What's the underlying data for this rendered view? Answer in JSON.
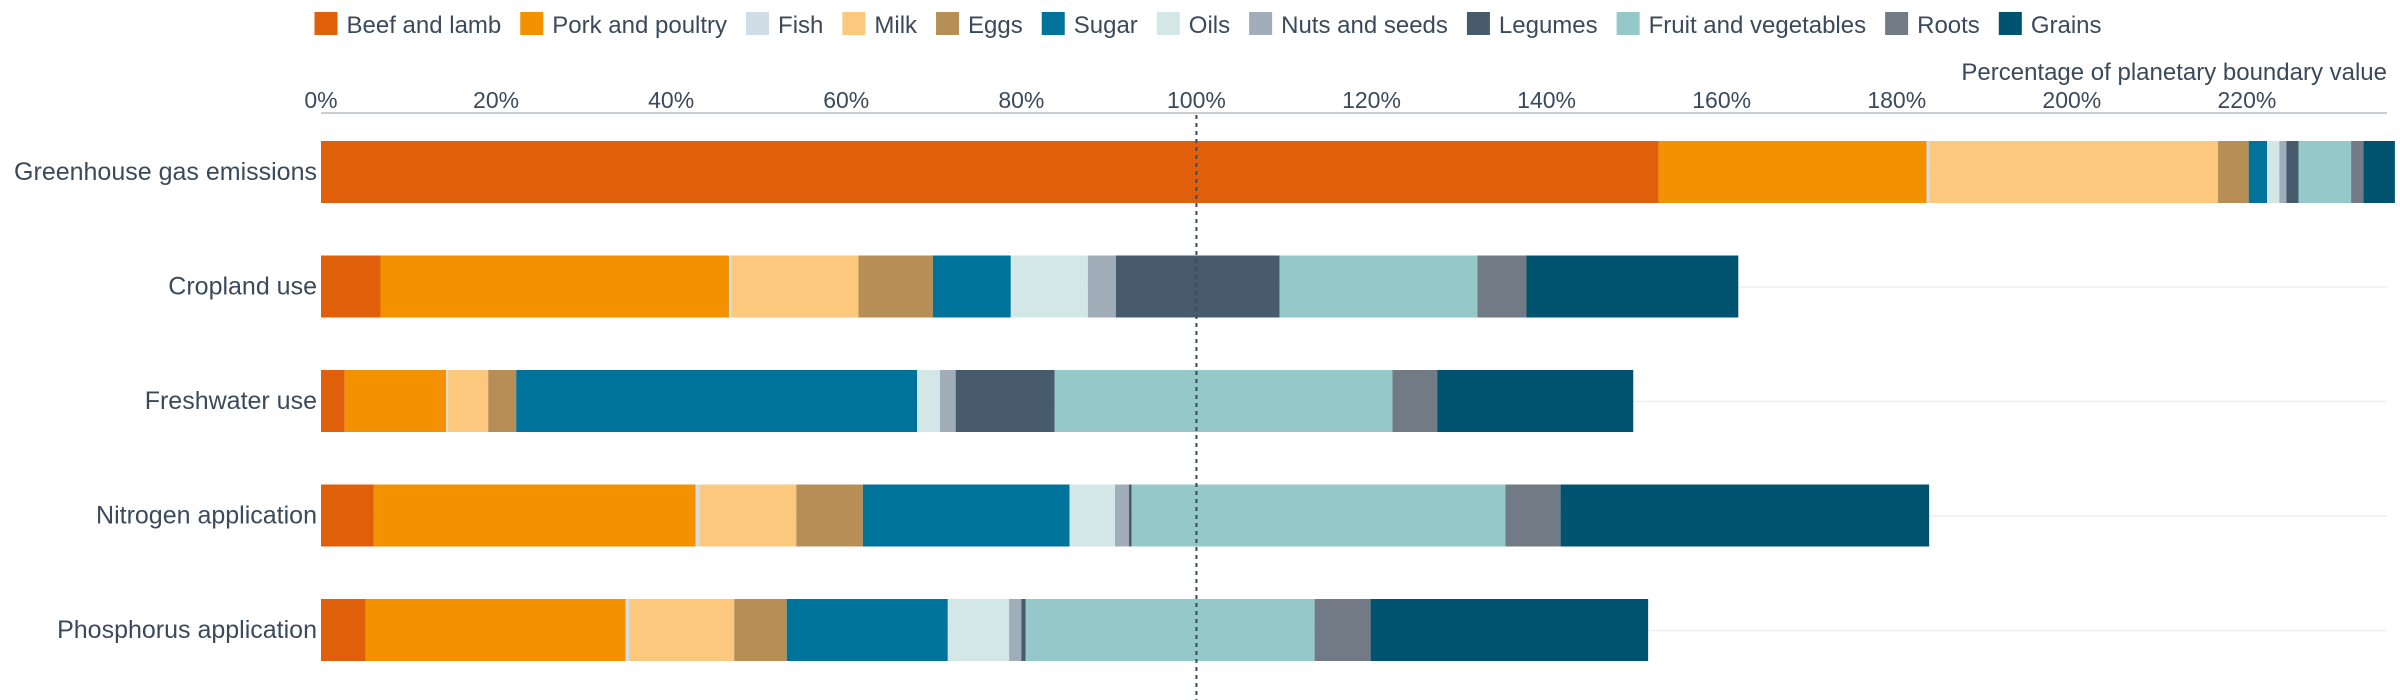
{
  "chart_data": {
    "type": "bar",
    "orientation": "horizontal",
    "stacked": true,
    "title": "",
    "xlabel": "Percentage of planetary boundary value",
    "ylabel": "",
    "xlim": [
      0,
      236
    ],
    "xticks": [
      0,
      20,
      40,
      60,
      80,
      100,
      120,
      140,
      160,
      180,
      200,
      220
    ],
    "xtick_labels": [
      "0%",
      "20%",
      "40%",
      "60%",
      "80%",
      "100%",
      "120%",
      "140%",
      "160%",
      "180%",
      "200%",
      "220%"
    ],
    "reference_line": {
      "x": 100,
      "style": "dotted"
    },
    "legend_position": "top",
    "grid": false,
    "categories": [
      "Greenhouse gas emissions",
      "Cropland use",
      "Freshwater use",
      "Nitrogen application",
      "Phosphorus application"
    ],
    "series": [
      {
        "name": "Beef and lamb",
        "color": "#e05f0a",
        "values": [
          152.8,
          6.8,
          2.7,
          6.0,
          5.1
        ]
      },
      {
        "name": "Pork and poultry",
        "color": "#f39100",
        "values": [
          30.6,
          39.8,
          11.6,
          36.8,
          29.7
        ]
      },
      {
        "name": "Fish",
        "color": "#d0dde6",
        "values": [
          0.3,
          0.3,
          0.2,
          0.5,
          0.4
        ]
      },
      {
        "name": "Milk",
        "color": "#fbc87d",
        "values": [
          33.0,
          14.5,
          4.6,
          11.0,
          12.0
        ]
      },
      {
        "name": "Eggs",
        "color": "#b68e56",
        "values": [
          3.5,
          8.5,
          3.2,
          7.6,
          6.0
        ]
      },
      {
        "name": "Sugar",
        "color": "#00739a",
        "values": [
          2.1,
          8.9,
          45.8,
          23.6,
          18.4
        ]
      },
      {
        "name": "Oils",
        "color": "#d3e7e6",
        "values": [
          1.4,
          8.8,
          2.6,
          5.2,
          7.0
        ]
      },
      {
        "name": "Nuts and seeds",
        "color": "#a1aeba",
        "values": [
          0.8,
          3.2,
          1.8,
          1.6,
          1.4
        ]
      },
      {
        "name": "Legumes",
        "color": "#475b6c",
        "values": [
          1.4,
          18.7,
          11.3,
          0.3,
          0.5
        ]
      },
      {
        "name": "Fruit and vegetables",
        "color": "#95c8c8",
        "values": [
          6.0,
          22.6,
          38.6,
          42.7,
          33.0
        ]
      },
      {
        "name": "Roots",
        "color": "#727b85",
        "values": [
          1.4,
          5.6,
          5.1,
          6.3,
          6.4
        ]
      },
      {
        "name": "Grains",
        "color": "#00536e",
        "values": [
          3.6,
          24.2,
          22.4,
          42.1,
          31.7
        ]
      }
    ]
  }
}
